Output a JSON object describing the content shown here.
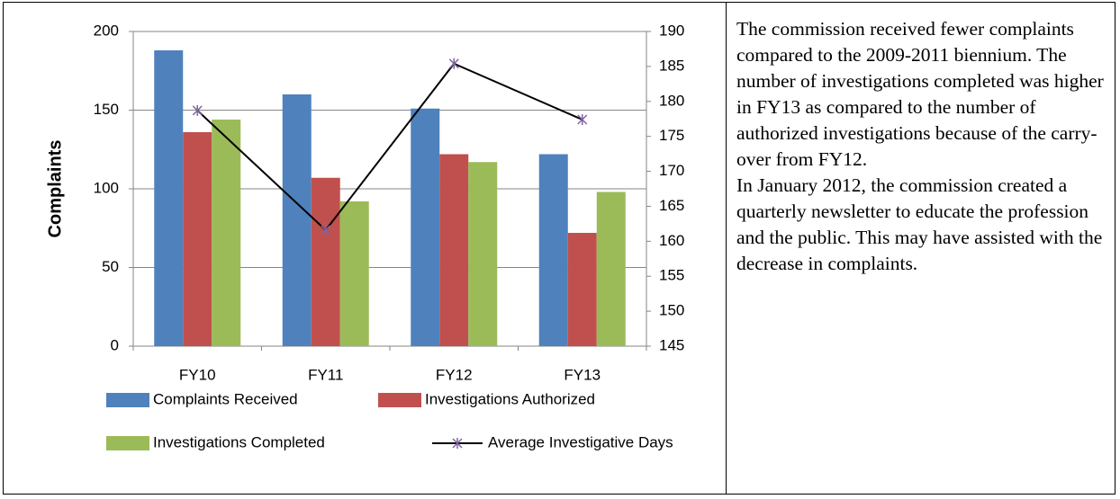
{
  "chart_data": {
    "type": "bar",
    "categories": [
      "FY10",
      "FY11",
      "FY12",
      "FY13"
    ],
    "y_label": "Complaints",
    "ylim": [
      0,
      200
    ],
    "yticks": [
      0,
      50,
      100,
      150,
      200
    ],
    "y2lim": [
      145,
      190
    ],
    "y2ticks": [
      145,
      150,
      155,
      160,
      165,
      170,
      175,
      180,
      185,
      190
    ],
    "series": [
      {
        "name": "Complaints Received",
        "type": "bar",
        "color": "#4f81bd",
        "values": [
          188,
          160,
          151,
          122
        ]
      },
      {
        "name": "Investigations Authorized",
        "type": "bar",
        "color": "#c0504d",
        "values": [
          136,
          107,
          122,
          72
        ]
      },
      {
        "name": "Investigations Completed",
        "type": "bar",
        "color": "#9bbb59",
        "values": [
          144,
          92,
          117,
          98
        ]
      },
      {
        "name": "Average Investigative Days",
        "type": "line",
        "axis": "y2",
        "color": "#000000",
        "marker_color": "#8064a2",
        "values": [
          178.7,
          161.6,
          185.4,
          177.4
        ]
      }
    ]
  },
  "note": {
    "paragraphs": [
      "The commission received fewer complaints compared to the 2009-2011 biennium. The number of investigations completed was higher in FY13 as compared to the number of authorized investigations because of the carry-over from FY12.",
      "In January 2012, the commission created a quarterly newsletter to educate the profession and the public. This may have assisted with the decrease in complaints."
    ]
  }
}
